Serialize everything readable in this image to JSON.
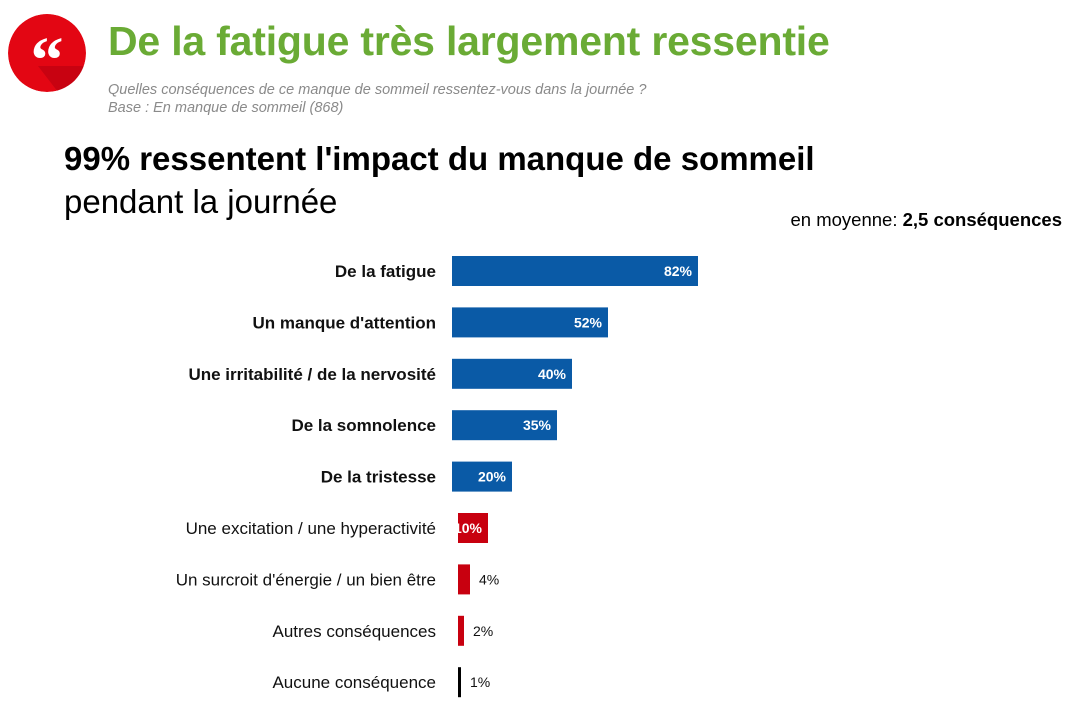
{
  "header": {
    "title": "De la fatigue très largement ressentie",
    "question": "Quelles conséquences de ce manque de sommeil ressentez-vous dans la journée ?",
    "base": "Base : En manque de sommeil (868)"
  },
  "headline": {
    "bold": "99% ressentent l'impact du manque de sommeil",
    "normal": "pendant la journée"
  },
  "average": {
    "prefix": "en moyenne: ",
    "value": "2,5 conséquences"
  },
  "colors": {
    "title": "#6aab35",
    "badge": "#e30613",
    "blue": "#0a5aa6",
    "red": "#c8000f",
    "black": "#000000"
  },
  "chart_data": {
    "type": "bar",
    "orientation": "horizontal",
    "categories": [
      "De la fatigue",
      "Un manque d'attention",
      "Une irritabilité / de la nervosité",
      "De la somnolence",
      "De la tristesse",
      "Une excitation / une hyperactivité",
      "Un surcroit d'énergie / un bien être",
      "Autres conséquences",
      "Aucune conséquence"
    ],
    "values": [
      82,
      52,
      40,
      35,
      20,
      10,
      4,
      2,
      1
    ],
    "value_labels": [
      "82%",
      "52%",
      "40%",
      "35%",
      "20%",
      "10%",
      "4%",
      "2%",
      "1%"
    ],
    "bold_categories": [
      true,
      true,
      true,
      true,
      true,
      false,
      false,
      false,
      false
    ],
    "bar_colors": [
      "blue",
      "blue",
      "blue",
      "blue",
      "blue",
      "red",
      "red",
      "red",
      "black"
    ],
    "xlim": [
      0,
      100
    ],
    "grid": false,
    "legend": "none"
  }
}
